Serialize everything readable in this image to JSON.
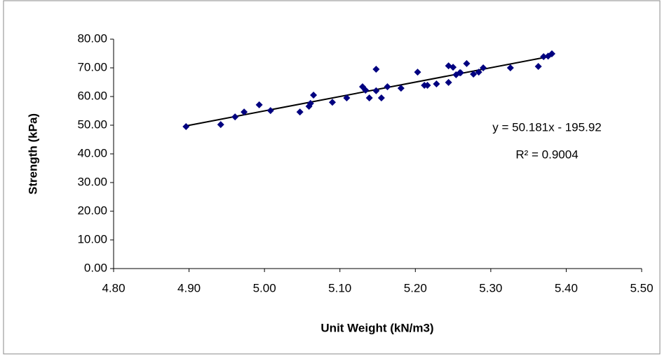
{
  "chart_data": {
    "type": "scatter",
    "x_label": "Unit Weight (kN/m3)",
    "y_label": "Strength (kPa)",
    "x": [
      4.896,
      4.942,
      4.961,
      4.973,
      4.993,
      5.008,
      5.047,
      5.059,
      5.061,
      5.065,
      5.09,
      5.109,
      5.13,
      5.134,
      5.139,
      5.148,
      5.148,
      5.155,
      5.163,
      5.181,
      5.203,
      5.212,
      5.216,
      5.228,
      5.244,
      5.244,
      5.25,
      5.254,
      5.259,
      5.26,
      5.268,
      5.277,
      5.284,
      5.29,
      5.326,
      5.363,
      5.37,
      5.376,
      5.381
    ],
    "values": [
      49.5,
      50.2,
      52.9,
      54.6,
      57.1,
      55.1,
      54.6,
      56.6,
      57.6,
      60.5,
      58.0,
      59.5,
      63.4,
      62.2,
      59.5,
      69.5,
      62.0,
      59.5,
      63.4,
      62.9,
      68.5,
      63.9,
      63.9,
      64.4,
      64.9,
      70.7,
      70.2,
      67.6,
      68.3,
      68.3,
      71.5,
      67.8,
      68.5,
      70.0,
      70.0,
      70.5,
      73.9,
      74.1,
      74.9
    ],
    "color": "#000080",
    "trendline": {
      "equation": "y = 50.181x - 195.92",
      "slope": 50.181,
      "intercept": -195.92,
      "r2": 0.9004,
      "r2_label": "R² = 0.9004",
      "color": "#000000"
    },
    "xlim": [
      4.8,
      5.5
    ],
    "xticks": [
      {
        "value": 4.8,
        "label": "4.80"
      },
      {
        "value": 4.9,
        "label": "4.90"
      },
      {
        "value": 5.0,
        "label": "5.00"
      },
      {
        "value": 5.1,
        "label": "5.10"
      },
      {
        "value": 5.2,
        "label": "5.20"
      },
      {
        "value": 5.3,
        "label": "5.30"
      },
      {
        "value": 5.4,
        "label": "5.40"
      },
      {
        "value": 5.5,
        "label": "5.50"
      }
    ],
    "ylim": [
      0,
      80
    ],
    "yticks": [
      {
        "value": 0,
        "label": "0.00"
      },
      {
        "value": 10,
        "label": "10.00"
      },
      {
        "value": 20,
        "label": "20.00"
      },
      {
        "value": 30,
        "label": "30.00"
      },
      {
        "value": 40,
        "label": "40.00"
      },
      {
        "value": 50,
        "label": "50.00"
      },
      {
        "value": 60,
        "label": "60.00"
      },
      {
        "value": 70,
        "label": "70.00"
      },
      {
        "value": 80,
        "label": "80.00"
      }
    ],
    "grid": false
  }
}
